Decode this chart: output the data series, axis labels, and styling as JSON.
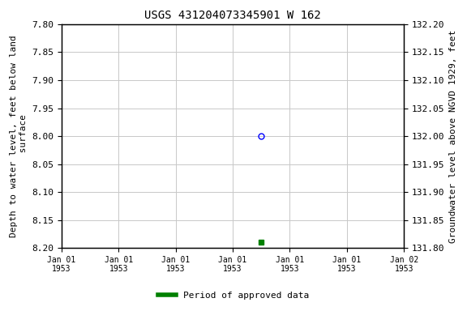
{
  "title": "USGS 431204073345901 W 162",
  "title_fontsize": 10,
  "ylabel_left": "Depth to water level, feet below land\n surface",
  "ylabel_right": "Groundwater level above NGVD 1929, feet",
  "ylim_left": [
    7.8,
    8.2
  ],
  "ylim_right": [
    131.8,
    132.2
  ],
  "yticks_left": [
    7.8,
    7.85,
    7.9,
    7.95,
    8.0,
    8.05,
    8.1,
    8.15,
    8.2
  ],
  "yticks_right": [
    131.8,
    131.85,
    131.9,
    131.95,
    132.0,
    132.05,
    132.1,
    132.15,
    132.2
  ],
  "point_open_x": 3.5,
  "point_open_y": 8.0,
  "point_open_color": "blue",
  "point_filled_x": 3.5,
  "point_filled_y": 8.19,
  "point_filled_color": "#008000",
  "xlim": [
    0,
    6
  ],
  "xtick_positions": [
    0,
    1,
    2,
    3,
    4,
    5,
    6
  ],
  "xtick_labels": [
    "Jan 01\n1953",
    "Jan 01\n1953",
    "Jan 01\n1953",
    "Jan 01\n1953",
    "Jan 01\n1953",
    "Jan 01\n1953",
    "Jan 02\n1953"
  ],
  "legend_label": "Period of approved data",
  "legend_color": "#008000",
  "grid_color": "#c8c8c8",
  "bg_color": "#ffffff",
  "font_family": "monospace"
}
